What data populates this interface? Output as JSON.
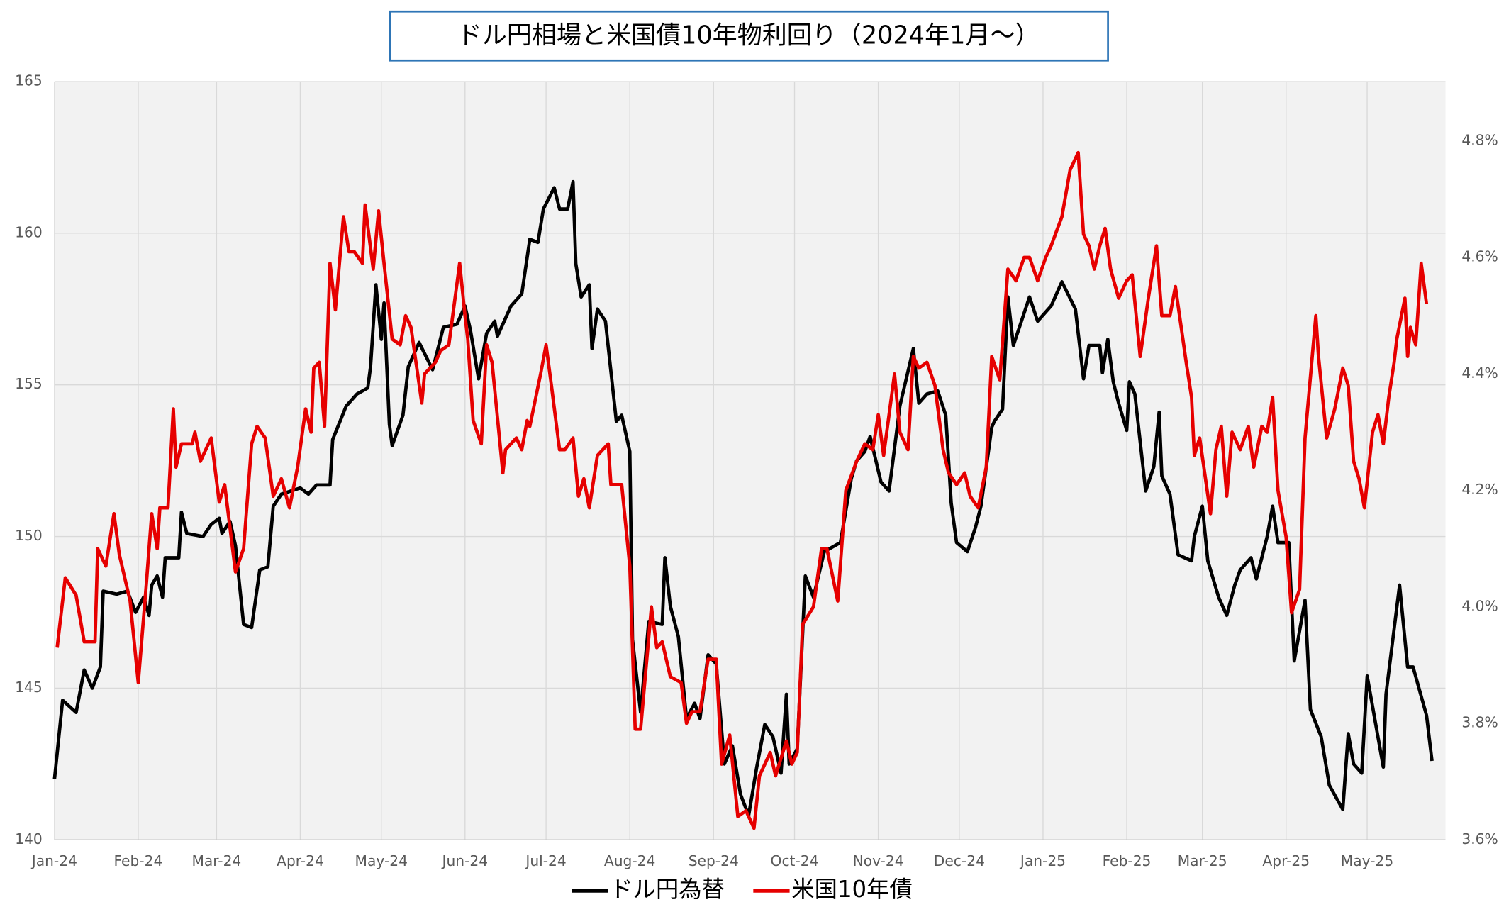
{
  "chart_data": {
    "type": "line",
    "title": "ドル円相場と米国債10年物利回り（2024年1月～）",
    "xlim": [
      0,
      515
    ],
    "xticks": [
      {
        "value": 0,
        "label": "Jan-24"
      },
      {
        "value": 31,
        "label": "Feb-24"
      },
      {
        "value": 60,
        "label": "Mar-24"
      },
      {
        "value": 91,
        "label": "Apr-24"
      },
      {
        "value": 121,
        "label": "May-24"
      },
      {
        "value": 152,
        "label": "Jun-24"
      },
      {
        "value": 182,
        "label": "Jul-24"
      },
      {
        "value": 213,
        "label": "Aug-24"
      },
      {
        "value": 244,
        "label": "Sep-24"
      },
      {
        "value": 274,
        "label": "Oct-24"
      },
      {
        "value": 305,
        "label": "Nov-24"
      },
      {
        "value": 335,
        "label": "Dec-24"
      },
      {
        "value": 366,
        "label": "Jan-25"
      },
      {
        "value": 397,
        "label": "Feb-25"
      },
      {
        "value": 425,
        "label": "Mar-25"
      },
      {
        "value": 456,
        "label": "Apr-25"
      },
      {
        "value": 486,
        "label": "May-25"
      }
    ],
    "ylim": [
      140,
      165
    ],
    "yticks": [
      140,
      145,
      150,
      155,
      160,
      165
    ],
    "y2lim": [
      3.6,
      4.902
    ],
    "y2ticks": [
      {
        "value": 3.6,
        "label": "3.6%"
      },
      {
        "value": 3.8,
        "label": "3.8%"
      },
      {
        "value": 4.0,
        "label": "4.0%"
      },
      {
        "value": 4.2,
        "label": "4.2%"
      },
      {
        "value": 4.4,
        "label": "4.4%"
      },
      {
        "value": 4.6,
        "label": "4.6%"
      },
      {
        "value": 4.8,
        "label": "4.8%"
      }
    ],
    "grid": true,
    "legend": "bottom",
    "series": [
      {
        "name": "ドル円為替",
        "color": "#000000",
        "x": [
          0,
          3,
          8,
          11,
          14,
          17,
          18,
          23,
          27,
          30,
          33,
          35,
          36,
          38,
          40,
          41,
          46,
          47,
          49,
          55,
          58,
          61,
          62,
          65,
          67,
          70,
          73,
          76,
          79,
          81,
          84,
          91,
          94,
          97,
          102,
          103,
          108,
          112,
          116,
          117,
          119,
          121,
          122,
          124,
          125,
          129,
          131,
          135,
          140,
          144,
          149,
          152,
          154,
          157,
          160,
          163,
          164,
          169,
          173,
          176,
          179,
          181,
          185,
          187,
          190,
          192,
          193,
          195,
          198,
          199,
          201,
          204,
          208,
          210,
          213,
          214,
          217,
          220,
          225,
          226,
          228,
          231,
          234,
          237,
          239,
          242,
          245,
          248,
          251,
          254,
          257,
          260,
          263,
          266,
          269,
          271,
          272,
          275,
          278,
          281,
          285,
          291,
          295,
          297,
          300,
          302,
          306,
          309,
          313,
          318,
          320,
          323,
          327,
          330,
          332,
          334,
          338,
          341,
          343,
          347,
          348,
          351,
          353,
          355,
          361,
          364,
          369,
          373,
          378,
          381,
          383,
          387,
          388,
          390,
          392,
          394,
          397,
          398,
          400,
          404,
          407,
          409,
          410,
          413,
          416,
          421,
          422,
          425,
          427,
          431,
          434,
          437,
          439,
          443,
          445,
          449,
          451,
          453,
          457,
          459,
          463,
          465,
          469,
          472,
          477,
          479,
          481,
          484,
          486,
          492,
          493,
          498,
          501,
          503,
          508,
          510
        ],
        "values": [
          142.0,
          144.6,
          144.2,
          145.6,
          145.0,
          145.7,
          148.2,
          148.1,
          148.2,
          147.5,
          148.0,
          147.4,
          148.4,
          148.7,
          148.0,
          149.3,
          149.3,
          150.8,
          150.1,
          150.0,
          150.4,
          150.6,
          150.1,
          150.5,
          149.7,
          147.1,
          147.0,
          148.9,
          149.0,
          151.0,
          151.4,
          151.6,
          151.4,
          151.7,
          151.7,
          153.2,
          154.3,
          154.7,
          154.9,
          155.6,
          158.3,
          156.5,
          157.7,
          153.7,
          153.0,
          154.0,
          155.6,
          156.4,
          155.5,
          156.9,
          157.0,
          157.6,
          156.8,
          155.2,
          156.7,
          157.1,
          156.6,
          157.6,
          158.0,
          159.8,
          159.7,
          160.8,
          161.5,
          160.8,
          160.8,
          161.7,
          159.0,
          157.9,
          158.3,
          156.2,
          157.5,
          157.1,
          153.8,
          154.0,
          152.8,
          146.6,
          144.2,
          147.2,
          147.1,
          149.3,
          147.7,
          146.7,
          144.0,
          144.5,
          144.0,
          146.1,
          145.8,
          142.5,
          143.1,
          141.5,
          140.8,
          142.4,
          143.8,
          143.4,
          142.2,
          144.8,
          142.5,
          143.0,
          148.7,
          148.0,
          149.5,
          149.8,
          151.9,
          152.5,
          152.8,
          153.3,
          151.8,
          151.5,
          154.3,
          156.2,
          154.4,
          154.7,
          154.8,
          154.0,
          151.1,
          149.8,
          149.5,
          150.3,
          151.0,
          153.6,
          153.8,
          154.2,
          157.9,
          156.3,
          157.9,
          157.1,
          157.6,
          158.4,
          157.5,
          155.2,
          156.3,
          156.3,
          155.4,
          156.5,
          155.1,
          154.4,
          153.5,
          155.1,
          154.7,
          151.5,
          152.3,
          154.1,
          152.0,
          151.4,
          149.4,
          149.2,
          150.0,
          151.0,
          149.2,
          148.0,
          147.4,
          148.4,
          148.9,
          149.3,
          148.6,
          150.0,
          151.0,
          149.8,
          149.8,
          145.9,
          147.9,
          144.3,
          143.4,
          141.8,
          141.0,
          143.5,
          142.5,
          142.2,
          145.4,
          142.4,
          144.8,
          148.4,
          145.7,
          145.7,
          144.1,
          142.6
        ]
      },
      {
        "name": "米国10年債",
        "color": "#e60000",
        "axis": "y2",
        "x": [
          1,
          4,
          8,
          11,
          15,
          16,
          19,
          22,
          24,
          28,
          31,
          34,
          36,
          38,
          39,
          42,
          44,
          45,
          47,
          51,
          52,
          54,
          58,
          61,
          63,
          67,
          70,
          73,
          75,
          78,
          81,
          84,
          87,
          90,
          93,
          95,
          96,
          98,
          100,
          102,
          104,
          107,
          109,
          111,
          114,
          115,
          118,
          120,
          122,
          125,
          128,
          130,
          132,
          136,
          137,
          141,
          143,
          146,
          150,
          152,
          153,
          155,
          158,
          160,
          162,
          166,
          167,
          171,
          173,
          175,
          176,
          180,
          182,
          184,
          187,
          189,
          192,
          194,
          196,
          198,
          201,
          205,
          206,
          210,
          213,
          215,
          217,
          221,
          223,
          225,
          228,
          232,
          234,
          236,
          239,
          242,
          245,
          247,
          250,
          253,
          256,
          259,
          261,
          265,
          267,
          271,
          273,
          275,
          277,
          281,
          284,
          286,
          290,
          293,
          297,
          300,
          303,
          305,
          307,
          311,
          313,
          316,
          318,
          320,
          323,
          326,
          329,
          331,
          334,
          337,
          339,
          342,
          345,
          347,
          350,
          353,
          356,
          359,
          361,
          364,
          367,
          369,
          373,
          376,
          379,
          381,
          383,
          385,
          387,
          389,
          391,
          394,
          397,
          399,
          402,
          405,
          408,
          410,
          413,
          415,
          419,
          421,
          422,
          424,
          428,
          430,
          432,
          434,
          436,
          439,
          442,
          444,
          447,
          449,
          451,
          453,
          456,
          458,
          461,
          463,
          467,
          468,
          471,
          474,
          477,
          479,
          481,
          483,
          485,
          488,
          490,
          492,
          494,
          496,
          497,
          500,
          501,
          502,
          504,
          506,
          508
        ],
        "values": [
          3.93,
          4.05,
          4.02,
          3.94,
          3.94,
          4.1,
          4.07,
          4.16,
          4.09,
          4.01,
          3.87,
          4.04,
          4.16,
          4.1,
          4.17,
          4.17,
          4.34,
          4.24,
          4.28,
          4.28,
          4.3,
          4.25,
          4.29,
          4.18,
          4.21,
          4.06,
          4.1,
          4.28,
          4.31,
          4.29,
          4.19,
          4.22,
          4.17,
          4.24,
          4.34,
          4.3,
          4.41,
          4.42,
          4.31,
          4.59,
          4.51,
          4.67,
          4.61,
          4.61,
          4.59,
          4.69,
          4.58,
          4.68,
          4.59,
          4.46,
          4.45,
          4.5,
          4.48,
          4.35,
          4.4,
          4.42,
          4.44,
          4.45,
          4.59,
          4.5,
          4.46,
          4.32,
          4.28,
          4.45,
          4.42,
          4.23,
          4.27,
          4.29,
          4.27,
          4.32,
          4.31,
          4.4,
          4.45,
          4.38,
          4.27,
          4.27,
          4.29,
          4.19,
          4.22,
          4.17,
          4.26,
          4.28,
          4.21,
          4.21,
          4.07,
          3.79,
          3.79,
          4.0,
          3.93,
          3.94,
          3.88,
          3.87,
          3.8,
          3.82,
          3.82,
          3.91,
          3.91,
          3.73,
          3.78,
          3.64,
          3.65,
          3.62,
          3.71,
          3.75,
          3.71,
          3.77,
          3.73,
          3.75,
          3.97,
          4.0,
          4.1,
          4.1,
          4.01,
          4.2,
          4.25,
          4.28,
          4.27,
          4.33,
          4.26,
          4.4,
          4.3,
          4.27,
          4.43,
          4.41,
          4.42,
          4.38,
          4.27,
          4.23,
          4.21,
          4.23,
          4.19,
          4.17,
          4.24,
          4.43,
          4.39,
          4.58,
          4.56,
          4.6,
          4.6,
          4.56,
          4.6,
          4.62,
          4.67,
          4.75,
          4.78,
          4.64,
          4.62,
          4.58,
          4.62,
          4.65,
          4.58,
          4.53,
          4.56,
          4.57,
          4.43,
          4.53,
          4.62,
          4.5,
          4.5,
          4.55,
          4.42,
          4.36,
          4.26,
          4.29,
          4.16,
          4.27,
          4.31,
          4.19,
          4.3,
          4.27,
          4.31,
          4.24,
          4.31,
          4.3,
          4.36,
          4.2,
          4.12,
          3.99,
          4.03,
          4.29,
          4.5,
          4.43,
          4.29,
          4.34,
          4.41,
          4.38,
          4.25,
          4.22,
          4.17,
          4.3,
          4.33,
          4.28,
          4.36,
          4.42,
          4.46,
          4.53,
          4.43,
          4.48,
          4.45,
          4.59,
          4.52
        ]
      }
    ]
  }
}
